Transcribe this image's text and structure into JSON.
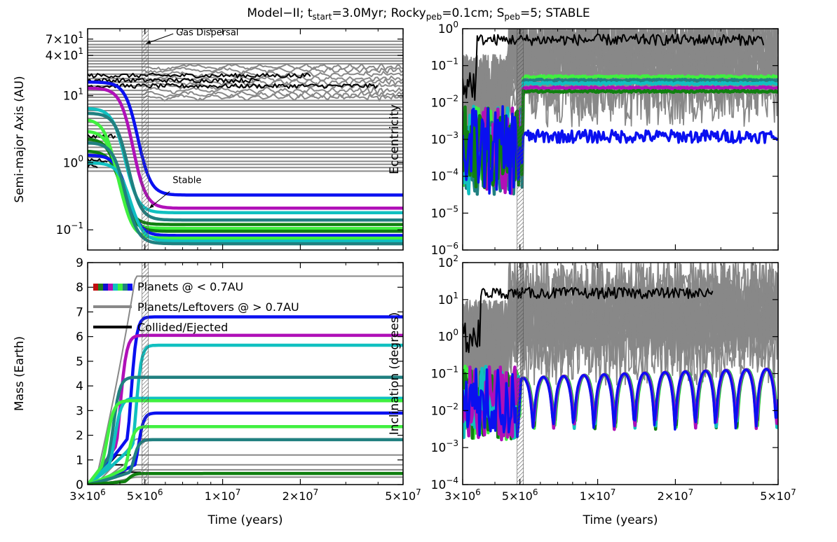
{
  "figure_title": {
    "parts": [
      {
        "text": "Model−II; t"
      },
      {
        "text": "start",
        "sub": true
      },
      {
        "text": "=3.0Myr; Rocky"
      },
      {
        "text": "peb",
        "sub": true
      },
      {
        "text": "=0.1cm; S"
      },
      {
        "text": "peb",
        "sub": true
      },
      {
        "text": "=5; STABLE"
      }
    ]
  },
  "colors": {
    "gray": "#888888",
    "black": "#000000",
    "blue": "#0a10f0",
    "magenta": "#b010b8",
    "cyan": "#10c0c0",
    "teal": "#208080",
    "green": "#108010",
    "lime": "#40f040",
    "hatch": "#555555"
  },
  "legend": {
    "placement": "upper-left of Mass panel",
    "entries": [
      {
        "label": "Planets @ < 0.7AU",
        "style": "multicolor"
      },
      {
        "label": "Planets/Leftovers @ > 0.7AU",
        "style": "gray"
      },
      {
        "label": "Collided/Ejected",
        "style": "black"
      }
    ]
  },
  "x_ticks": [
    {
      "value": 3000000,
      "mant": "3",
      "exp": "6"
    },
    {
      "value": 5000000,
      "mant": "5",
      "exp": "6"
    },
    {
      "value": 10000000,
      "mant": "1",
      "exp": "7"
    },
    {
      "value": 20000000,
      "mant": "2",
      "exp": "7"
    },
    {
      "value": 50000000,
      "mant": "5",
      "exp": "7"
    }
  ],
  "chart_data": [
    {
      "id": "semi-major-axis",
      "type": "line",
      "ylabel": "Semi-major Axis (AU)",
      "xscale": "log",
      "yscale": "log",
      "xlim": [
        3000000,
        50000000
      ],
      "ylim": [
        0.05,
        100
      ],
      "y_ticks": [
        {
          "value": 0.1,
          "mant": "10",
          "exp": "−1"
        },
        {
          "value": 1,
          "mant": "10",
          "exp": "0"
        },
        {
          "value": 10,
          "mant": "10",
          "exp": "1"
        },
        {
          "value": 40,
          "mant": "4×10",
          "exp": "1"
        },
        {
          "value": 70,
          "mant": "7×10",
          "exp": "1"
        }
      ],
      "gas_dispersal_time": 5000000,
      "annotations": [
        {
          "text": "Gas Dispersal",
          "x": 6600000,
          "y": 80,
          "arrow_to_x": 5050000,
          "arrow_to_y": 60
        },
        {
          "text": "Stable",
          "x": 6400000,
          "y": 0.5,
          "arrow_to_x": 5200000,
          "arrow_to_y": 0.21
        }
      ],
      "planets": [
        {
          "color": "blue",
          "a0": 16,
          "a1": 0.33,
          "t_mig": 4700000
        },
        {
          "color": "magenta",
          "a0": 13,
          "a1": 0.21,
          "t_mig": 4500000
        },
        {
          "color": "cyan",
          "a0": 6.5,
          "a1": 0.18,
          "t_mig": 4200000
        },
        {
          "color": "teal",
          "a0": 5.5,
          "a1": 0.14,
          "t_mig": 4300000
        },
        {
          "color": "green",
          "a0": 2.3,
          "a1": 0.12,
          "t_mig": 4000000
        },
        {
          "color": "lime",
          "a0": 4.5,
          "a1": 0.105,
          "t_mig": 3900000
        },
        {
          "color": "green",
          "a0": 1.5,
          "a1": 0.095,
          "t_mig": 4100000
        },
        {
          "color": "blue",
          "a0": 1.3,
          "a1": 0.082,
          "t_mig": 4300000
        },
        {
          "color": "lime",
          "a0": 3.0,
          "a1": 0.075,
          "t_mig": 4000000
        },
        {
          "color": "cyan",
          "a0": 1.0,
          "a1": 0.068,
          "t_mig": 4400000
        },
        {
          "color": "teal",
          "a0": 2.0,
          "a1": 0.062,
          "t_mig": 4200000
        }
      ],
      "gray_levels": [
        65,
        58,
        53,
        48,
        44,
        40,
        36,
        33,
        30,
        27,
        24,
        21,
        18,
        16,
        14,
        12,
        10.5,
        9.5,
        8.5,
        7.5,
        6.8,
        6.0,
        5.3,
        4.6,
        4.0,
        3.6,
        3.2,
        2.8,
        2.4,
        2.1,
        1.9,
        1.7,
        1.5,
        1.35,
        1.2,
        1.05,
        0.95,
        0.85,
        0.75
      ]
    },
    {
      "id": "eccentricity",
      "type": "line",
      "ylabel": "Eccentricity",
      "xscale": "log",
      "yscale": "log",
      "xlim": [
        3000000,
        50000000
      ],
      "ylim": [
        1e-06,
        1
      ],
      "y_ticks": [
        {
          "value": 1e-06,
          "mant": "10",
          "exp": "−6"
        },
        {
          "value": 1e-05,
          "mant": "10",
          "exp": "−5"
        },
        {
          "value": 0.0001,
          "mant": "10",
          "exp": "−4"
        },
        {
          "value": 0.001,
          "mant": "10",
          "exp": "−3"
        },
        {
          "value": 0.01,
          "mant": "10",
          "exp": "−2"
        },
        {
          "value": 0.1,
          "mant": "10",
          "exp": "−1"
        },
        {
          "value": 1,
          "mant": "10",
          "exp": "0"
        }
      ],
      "gas_dispersal_time": 5000000,
      "late_levels": [
        {
          "color": "lime",
          "e": 0.05
        },
        {
          "color": "teal",
          "e": 0.04
        },
        {
          "color": "cyan",
          "e": 0.033
        },
        {
          "color": "magenta",
          "e": 0.025
        },
        {
          "color": "green",
          "e": 0.02
        },
        {
          "color": "blue",
          "e": 0.0012
        }
      ]
    },
    {
      "id": "mass",
      "type": "line",
      "ylabel": "Mass (Earth)",
      "xscale": "log",
      "yscale": "linear",
      "xlim": [
        3000000,
        50000000
      ],
      "ylim": [
        0,
        9
      ],
      "y_ticks": [
        {
          "value": 0,
          "label": "0"
        },
        {
          "value": 1,
          "label": "1"
        },
        {
          "value": 2,
          "label": "2"
        },
        {
          "value": 3,
          "label": "3"
        },
        {
          "value": 4,
          "label": "4"
        },
        {
          "value": 5,
          "label": "5"
        },
        {
          "value": 6,
          "label": "6"
        },
        {
          "value": 7,
          "label": "7"
        },
        {
          "value": 8,
          "label": "8"
        },
        {
          "value": 9,
          "label": "9"
        }
      ],
      "gas_dispersal_time": 5000000,
      "planets": [
        {
          "color": "blue",
          "m": 6.8,
          "t_grow": 4400000
        },
        {
          "color": "magenta",
          "m": 6.05,
          "t_grow": 4000000
        },
        {
          "color": "cyan",
          "m": 5.65,
          "t_grow": 4600000
        },
        {
          "color": "teal",
          "m": 4.35,
          "t_grow": 3750000
        },
        {
          "color": "cyan",
          "m": 3.5,
          "t_grow": 3800000
        },
        {
          "color": "lime",
          "m": 3.4,
          "t_grow": 3550000
        },
        {
          "color": "blue",
          "m": 2.9,
          "t_grow": 4700000
        },
        {
          "color": "lime",
          "m": 2.35,
          "t_grow": 4300000
        },
        {
          "color": "teal",
          "m": 1.82,
          "t_grow": 4500000
        },
        {
          "color": "green",
          "m": 0.45,
          "t_grow": 4300000
        }
      ],
      "gray_levels": [
        8.45,
        1.85,
        1.2,
        0.8,
        0.6,
        0.3
      ]
    },
    {
      "id": "inclination",
      "type": "line",
      "ylabel": "Inclination (degrees)",
      "xscale": "log",
      "yscale": "log",
      "xlim": [
        3000000,
        50000000
      ],
      "ylim": [
        0.0001,
        100
      ],
      "y_ticks": [
        {
          "value": 0.0001,
          "mant": "10",
          "exp": "−4"
        },
        {
          "value": 0.001,
          "mant": "10",
          "exp": "−3"
        },
        {
          "value": 0.01,
          "mant": "10",
          "exp": "−2"
        },
        {
          "value": 0.1,
          "mant": "10",
          "exp": "−1"
        },
        {
          "value": 1,
          "mant": "10",
          "exp": "0"
        },
        {
          "value": 10,
          "mant": "10",
          "exp": "1"
        },
        {
          "value": 100,
          "mant": "10",
          "exp": "2"
        }
      ],
      "gas_dispersal_time": 5000000
    }
  ],
  "xlabel": "Time (years)"
}
